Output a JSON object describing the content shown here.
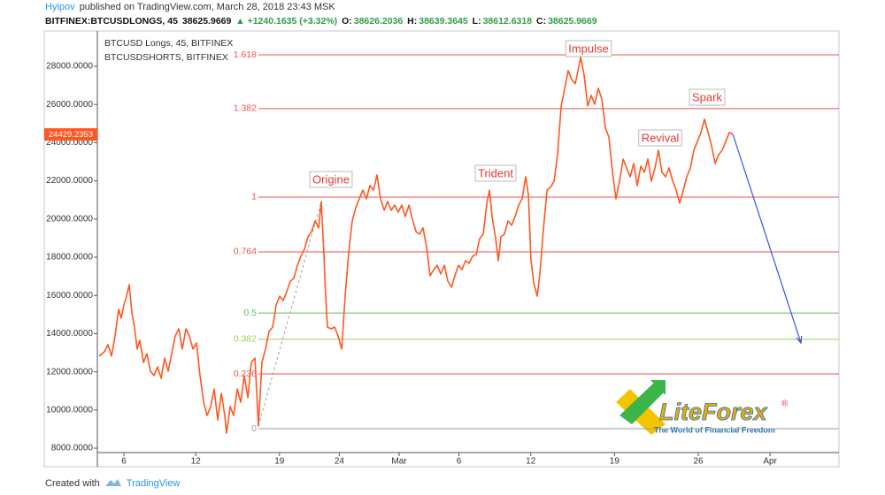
{
  "header": {
    "author": "Hyipov",
    "published": "published on TradingView.com, March 28, 2018 23:43 MSK",
    "symbol": "BITFINEX:BTCUSDLONGS, 45",
    "price": 38625.9669,
    "change": "▲ +1240.1635 (+3.32%)",
    "ohlc": [
      {
        "label": "O:",
        "value": 38626.2036
      },
      {
        "label": "H:",
        "value": 38639.3645
      },
      {
        "label": "L:",
        "value": 38612.6318
      },
      {
        "label": "C:",
        "value": 38625.9669
      }
    ]
  },
  "chart_data": {
    "type": "line",
    "overlay_label": "BTCUSDSHORTS, BITFINEX",
    "xlim": [
      3.78,
      65.76
    ],
    "ylim": [
      7770,
      29850
    ],
    "xticks": [
      6,
      12,
      19,
      24,
      {
        "value": 29,
        "label": "Mar"
      },
      {
        "value": 34,
        "label": "6"
      },
      {
        "value": 40,
        "label": "12"
      },
      {
        "value": 47,
        "label": "19"
      },
      {
        "value": 54,
        "label": "26"
      },
      {
        "value": 60,
        "label": "Apr"
      }
    ],
    "yticks": [
      {
        "value": 8000,
        "label": "8000.0000"
      },
      {
        "value": 10000,
        "label": "10000.0000"
      },
      {
        "value": 12000,
        "label": "12000.0000"
      },
      {
        "value": 14000,
        "label": "14000.0000"
      },
      {
        "value": 16000,
        "label": "16000.0000"
      },
      {
        "value": 18000,
        "label": "18000.0000"
      },
      {
        "value": 20000,
        "label": "20000.0000"
      },
      {
        "value": 22000,
        "label": "22000.0000"
      },
      {
        "value": 24000,
        "label": "24000.0000"
      },
      {
        "value": 26000,
        "label": "26000.0000"
      },
      {
        "value": 28000,
        "label": "28000.0000"
      }
    ],
    "grid": false,
    "last_price": 24429.2353,
    "last_price_color": "#ff5722",
    "series": [
      {
        "name": "BTCUSD Longs, 45, BITFINEX",
        "color": "#ff5722",
        "x": [
          3.93,
          4.37,
          4.67,
          4.96,
          5.26,
          5.56,
          5.78,
          6,
          6.22,
          6.44,
          6.67,
          6.89,
          7.11,
          7.33,
          7.63,
          7.92,
          8.22,
          8.51,
          8.81,
          9.11,
          9.4,
          9.7,
          9.99,
          10.29,
          10.59,
          10.88,
          11.18,
          11.47,
          11.77,
          12.07,
          12.36,
          12.66,
          12.95,
          13.25,
          13.54,
          13.84,
          14.14,
          14.43,
          14.58,
          14.88,
          15.17,
          15.47,
          15.76,
          16.06,
          16.36,
          16.65,
          16.95,
          17.24,
          17.54,
          17.83,
          18.13,
          18.43,
          18.72,
          19.02,
          19.31,
          19.61,
          19.91,
          20.2,
          20.5,
          20.79,
          21.09,
          21.38,
          21.68,
          21.98,
          22.27,
          22.49,
          22.72,
          22.86,
          23.01,
          23.31,
          23.6,
          23.9,
          24.2,
          24.49,
          24.79,
          25.08,
          25.38,
          25.67,
          25.97,
          26.27,
          26.56,
          26.86,
          27.15,
          27.45,
          27.75,
          28.04,
          28.34,
          28.63,
          28.93,
          29.22,
          29.52,
          29.82,
          30.11,
          30.41,
          30.7,
          31,
          31.3,
          31.59,
          31.89,
          32.18,
          32.48,
          32.78,
          33.07,
          33.37,
          33.66,
          33.96,
          34.25,
          34.55,
          34.85,
          35.14,
          35.44,
          35.73,
          36.03,
          36.33,
          36.55,
          36.77,
          37.07,
          37.29,
          37.51,
          37.8,
          38.1,
          38.4,
          38.69,
          38.99,
          39.28,
          39.58,
          39.8,
          40.02,
          40.25,
          40.54,
          40.76,
          41.06,
          41.36,
          41.65,
          41.95,
          42.24,
          42.54,
          42.84,
          43.13,
          43.43,
          43.72,
          44.02,
          44.17,
          44.46,
          44.76,
          45.05,
          45.35,
          45.64,
          45.94,
          46.24,
          46.53,
          46.83,
          47.12,
          47.42,
          47.72,
          48.01,
          48.31,
          48.6,
          48.9,
          49.2,
          49.49,
          49.79,
          50.08,
          50.38,
          50.67,
          50.97,
          51.27,
          51.56,
          51.86,
          52.15,
          52.45,
          52.75,
          53.04,
          53.34,
          53.63,
          53.93,
          54.22,
          54.52,
          54.82,
          55.11,
          55.41,
          55.7,
          56,
          56.3,
          56.59,
          56.89
        ],
        "values": [
          12820,
          13050,
          13420,
          12820,
          13880,
          15270,
          14810,
          15500,
          15960,
          16570,
          15040,
          14340,
          13190,
          13650,
          12490,
          12950,
          12030,
          11800,
          12260,
          11660,
          12720,
          12030,
          12950,
          13880,
          14250,
          13190,
          14250,
          13880,
          13190,
          13510,
          11800,
          10410,
          9710,
          10180,
          11100,
          9480,
          10870,
          9710,
          8790,
          10180,
          9710,
          11100,
          10410,
          11800,
          10640,
          12490,
          12720,
          9160,
          12490,
          13190,
          14110,
          14340,
          15500,
          15960,
          15730,
          16200,
          16750,
          16890,
          17580,
          18050,
          18420,
          19070,
          19340,
          19900,
          19530,
          20920,
          18050,
          15960,
          14340,
          14250,
          14340,
          13880,
          13190,
          15960,
          18280,
          19900,
          20590,
          21060,
          21520,
          21060,
          21750,
          21520,
          22310,
          21060,
          20460,
          20920,
          20460,
          20730,
          20360,
          20730,
          20130,
          20730,
          19990,
          19340,
          19210,
          19530,
          18510,
          17030,
          17350,
          17580,
          17120,
          17580,
          16750,
          16430,
          17030,
          17580,
          17350,
          17820,
          17680,
          18050,
          18140,
          18970,
          19210,
          20830,
          21520,
          20130,
          18970,
          17820,
          19070,
          19210,
          19900,
          19670,
          20130,
          20730,
          21060,
          22210,
          21290,
          17820,
          16660,
          15960,
          17120,
          19440,
          21520,
          21660,
          21980,
          23370,
          25920,
          26840,
          27770,
          27310,
          27080,
          28000,
          28470,
          27540,
          25920,
          26470,
          26010,
          26840,
          26290,
          24760,
          24300,
          22450,
          21060,
          21980,
          23140,
          22680,
          22210,
          22910,
          21750,
          22770,
          22450,
          23140,
          21980,
          22680,
          23600,
          22450,
          22210,
          22680,
          21980,
          21520,
          20830,
          21520,
          22210,
          22680,
          23600,
          24070,
          24530,
          25220,
          24530,
          23840,
          22910,
          23370,
          23600,
          24070,
          24530,
          24440
        ]
      }
    ],
    "fib_levels": [
      {
        "ratio": 1.618,
        "price": 28600,
        "color": "#ef5350"
      },
      {
        "ratio": 1.382,
        "price": 25780,
        "color": "#ef5350"
      },
      {
        "ratio": 1,
        "price": 21150,
        "color": "#ef5350"
      },
      {
        "ratio": 0.764,
        "price": 18280,
        "color": "#ef5350"
      },
      {
        "ratio": 0.5,
        "price": 15080,
        "color": "#66bb6a"
      },
      {
        "ratio": 0.382,
        "price": 13700,
        "color": "#9ccc65"
      },
      {
        "ratio": 0.236,
        "price": 11890,
        "color": "#ef5350"
      },
      {
        "ratio": 0,
        "price": 9020,
        "color": "#9e9e9e"
      }
    ],
    "fib_anchor": {
      "x": [
        17.24,
        22.49
      ],
      "y": [
        9160,
        20920
      ],
      "color": "#9e9e9e"
    },
    "projection": {
      "x": [
        56.89,
        62.58
      ],
      "y": [
        24440,
        13510
      ],
      "color": "#3d4fe0"
    },
    "annotations": [
      {
        "text": "Origine"
      },
      {
        "text": "Trident"
      },
      {
        "text": "Impulse"
      },
      {
        "text": "Revival"
      },
      {
        "text": "Spark"
      }
    ]
  },
  "watermark": {
    "brand": "LiteForex",
    "mark": "®",
    "tagline": "The World of Financial Freedom"
  },
  "footer": {
    "created": "Created with",
    "brand": "TradingView"
  }
}
